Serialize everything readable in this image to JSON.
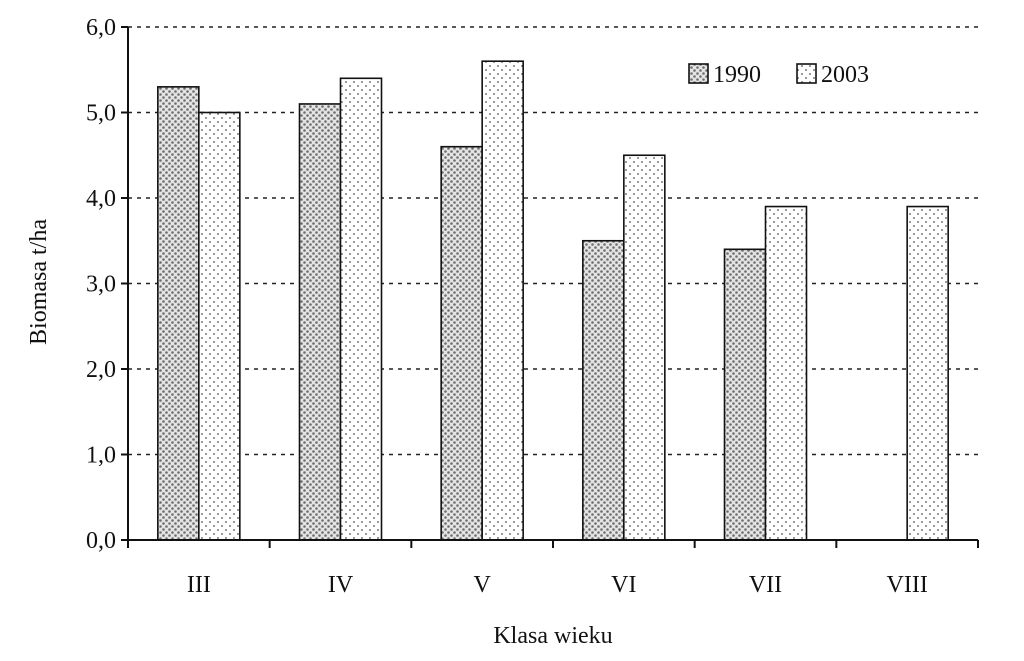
{
  "chart_data": {
    "type": "bar",
    "xlabel": "Klasa wieku",
    "ylabel": "Biomasa t/ha",
    "ylim": [
      0,
      6
    ],
    "yticks": [
      "0,0",
      "1,0",
      "2,0",
      "3,0",
      "4,0",
      "5,0",
      "6,0"
    ],
    "grid": true,
    "legend_position": "top-right",
    "categories": [
      "III",
      "IV",
      "V",
      "VI",
      "VII",
      "VIII"
    ],
    "series": [
      {
        "name": "1990",
        "values": [
          5.3,
          5.1,
          4.6,
          3.5,
          3.4,
          null
        ],
        "pattern": "dots",
        "color": "#8a8a8a"
      },
      {
        "name": "2003",
        "values": [
          5.0,
          5.4,
          5.6,
          4.5,
          3.9,
          3.9
        ],
        "pattern": "sparse-dots",
        "color": "#555555"
      }
    ]
  }
}
